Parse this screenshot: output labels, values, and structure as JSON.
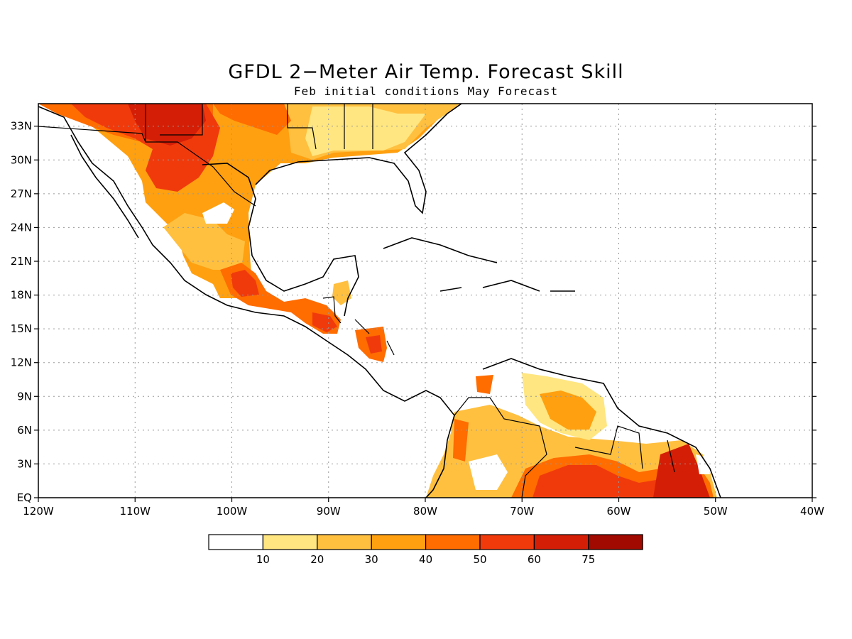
{
  "header": {
    "title": "GFDL 2−Meter Air Temp. Forecast Skill",
    "subtitle": "Feb initial conditions   May Forecast"
  },
  "map": {
    "lon_range": [
      -120,
      -40
    ],
    "lat_range": [
      0,
      35
    ],
    "lon_ticks": [
      {
        "value": -120,
        "label": "120W"
      },
      {
        "value": -110,
        "label": "110W"
      },
      {
        "value": -100,
        "label": "100W"
      },
      {
        "value": -90,
        "label": "90W"
      },
      {
        "value": -80,
        "label": "80W"
      },
      {
        "value": -70,
        "label": "70W"
      },
      {
        "value": -60,
        "label": "60W"
      },
      {
        "value": -50,
        "label": "50W"
      },
      {
        "value": -40,
        "label": "40W"
      }
    ],
    "lat_ticks": [
      {
        "value": 0,
        "label": "EQ"
      },
      {
        "value": 3,
        "label": "3N"
      },
      {
        "value": 6,
        "label": "6N"
      },
      {
        "value": 9,
        "label": "9N"
      },
      {
        "value": 12,
        "label": "12N"
      },
      {
        "value": 15,
        "label": "15N"
      },
      {
        "value": 18,
        "label": "18N"
      },
      {
        "value": 21,
        "label": "21N"
      },
      {
        "value": 24,
        "label": "24N"
      },
      {
        "value": 27,
        "label": "27N"
      },
      {
        "value": 30,
        "label": "30N"
      },
      {
        "value": 33,
        "label": "33N"
      }
    ],
    "grid": "dotted"
  },
  "legend": {
    "colors": [
      "#ffffff",
      "#ffe680",
      "#ffc040",
      "#ffa010",
      "#ff6c00",
      "#f03a0c",
      "#d41e06",
      "#a00a00"
    ],
    "labels": [
      "10",
      "20",
      "30",
      "40",
      "50",
      "60",
      "75"
    ]
  }
}
